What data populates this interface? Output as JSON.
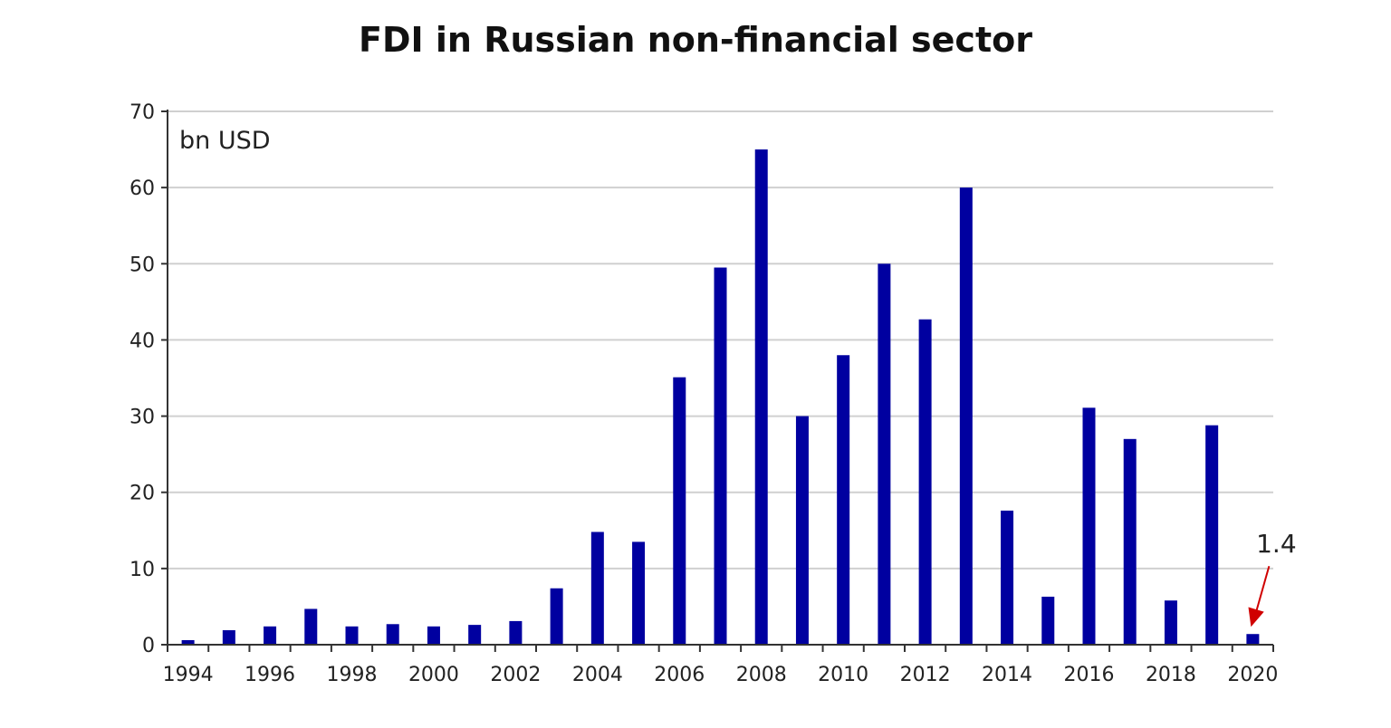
{
  "chart_data": {
    "type": "bar",
    "title": "FDI in Russian non-financial sector",
    "unit_label": "bn USD",
    "xlabel": "",
    "ylabel": "",
    "ylim": [
      0,
      70
    ],
    "yticks": [
      0,
      10,
      20,
      30,
      40,
      50,
      60,
      70
    ],
    "grid": true,
    "bar_color": "#0000A0",
    "categories": [
      "1994",
      "1995",
      "1996",
      "1997",
      "1998",
      "1999",
      "2000",
      "2001",
      "2002",
      "2003",
      "2004",
      "2005",
      "2006",
      "2007",
      "2008",
      "2009",
      "2010",
      "2011",
      "2012",
      "2013",
      "2014",
      "2015",
      "2016",
      "2017",
      "2018",
      "2019",
      "2020"
    ],
    "x_tick_labels": [
      "1994",
      "1996",
      "1998",
      "2000",
      "2002",
      "2004",
      "2006",
      "2008",
      "2010",
      "2012",
      "2014",
      "2016",
      "2018",
      "2020"
    ],
    "values": [
      0.6,
      1.9,
      2.4,
      4.7,
      2.4,
      2.7,
      2.4,
      2.6,
      3.1,
      7.4,
      14.8,
      13.5,
      35.1,
      49.5,
      65.0,
      30.0,
      38.0,
      50.0,
      42.7,
      60.0,
      17.6,
      6.3,
      31.1,
      27.0,
      5.8,
      28.8,
      1.4
    ],
    "annotations": [
      {
        "category": "2020",
        "text": "1.4",
        "arrow_color": "#D00000"
      }
    ]
  }
}
